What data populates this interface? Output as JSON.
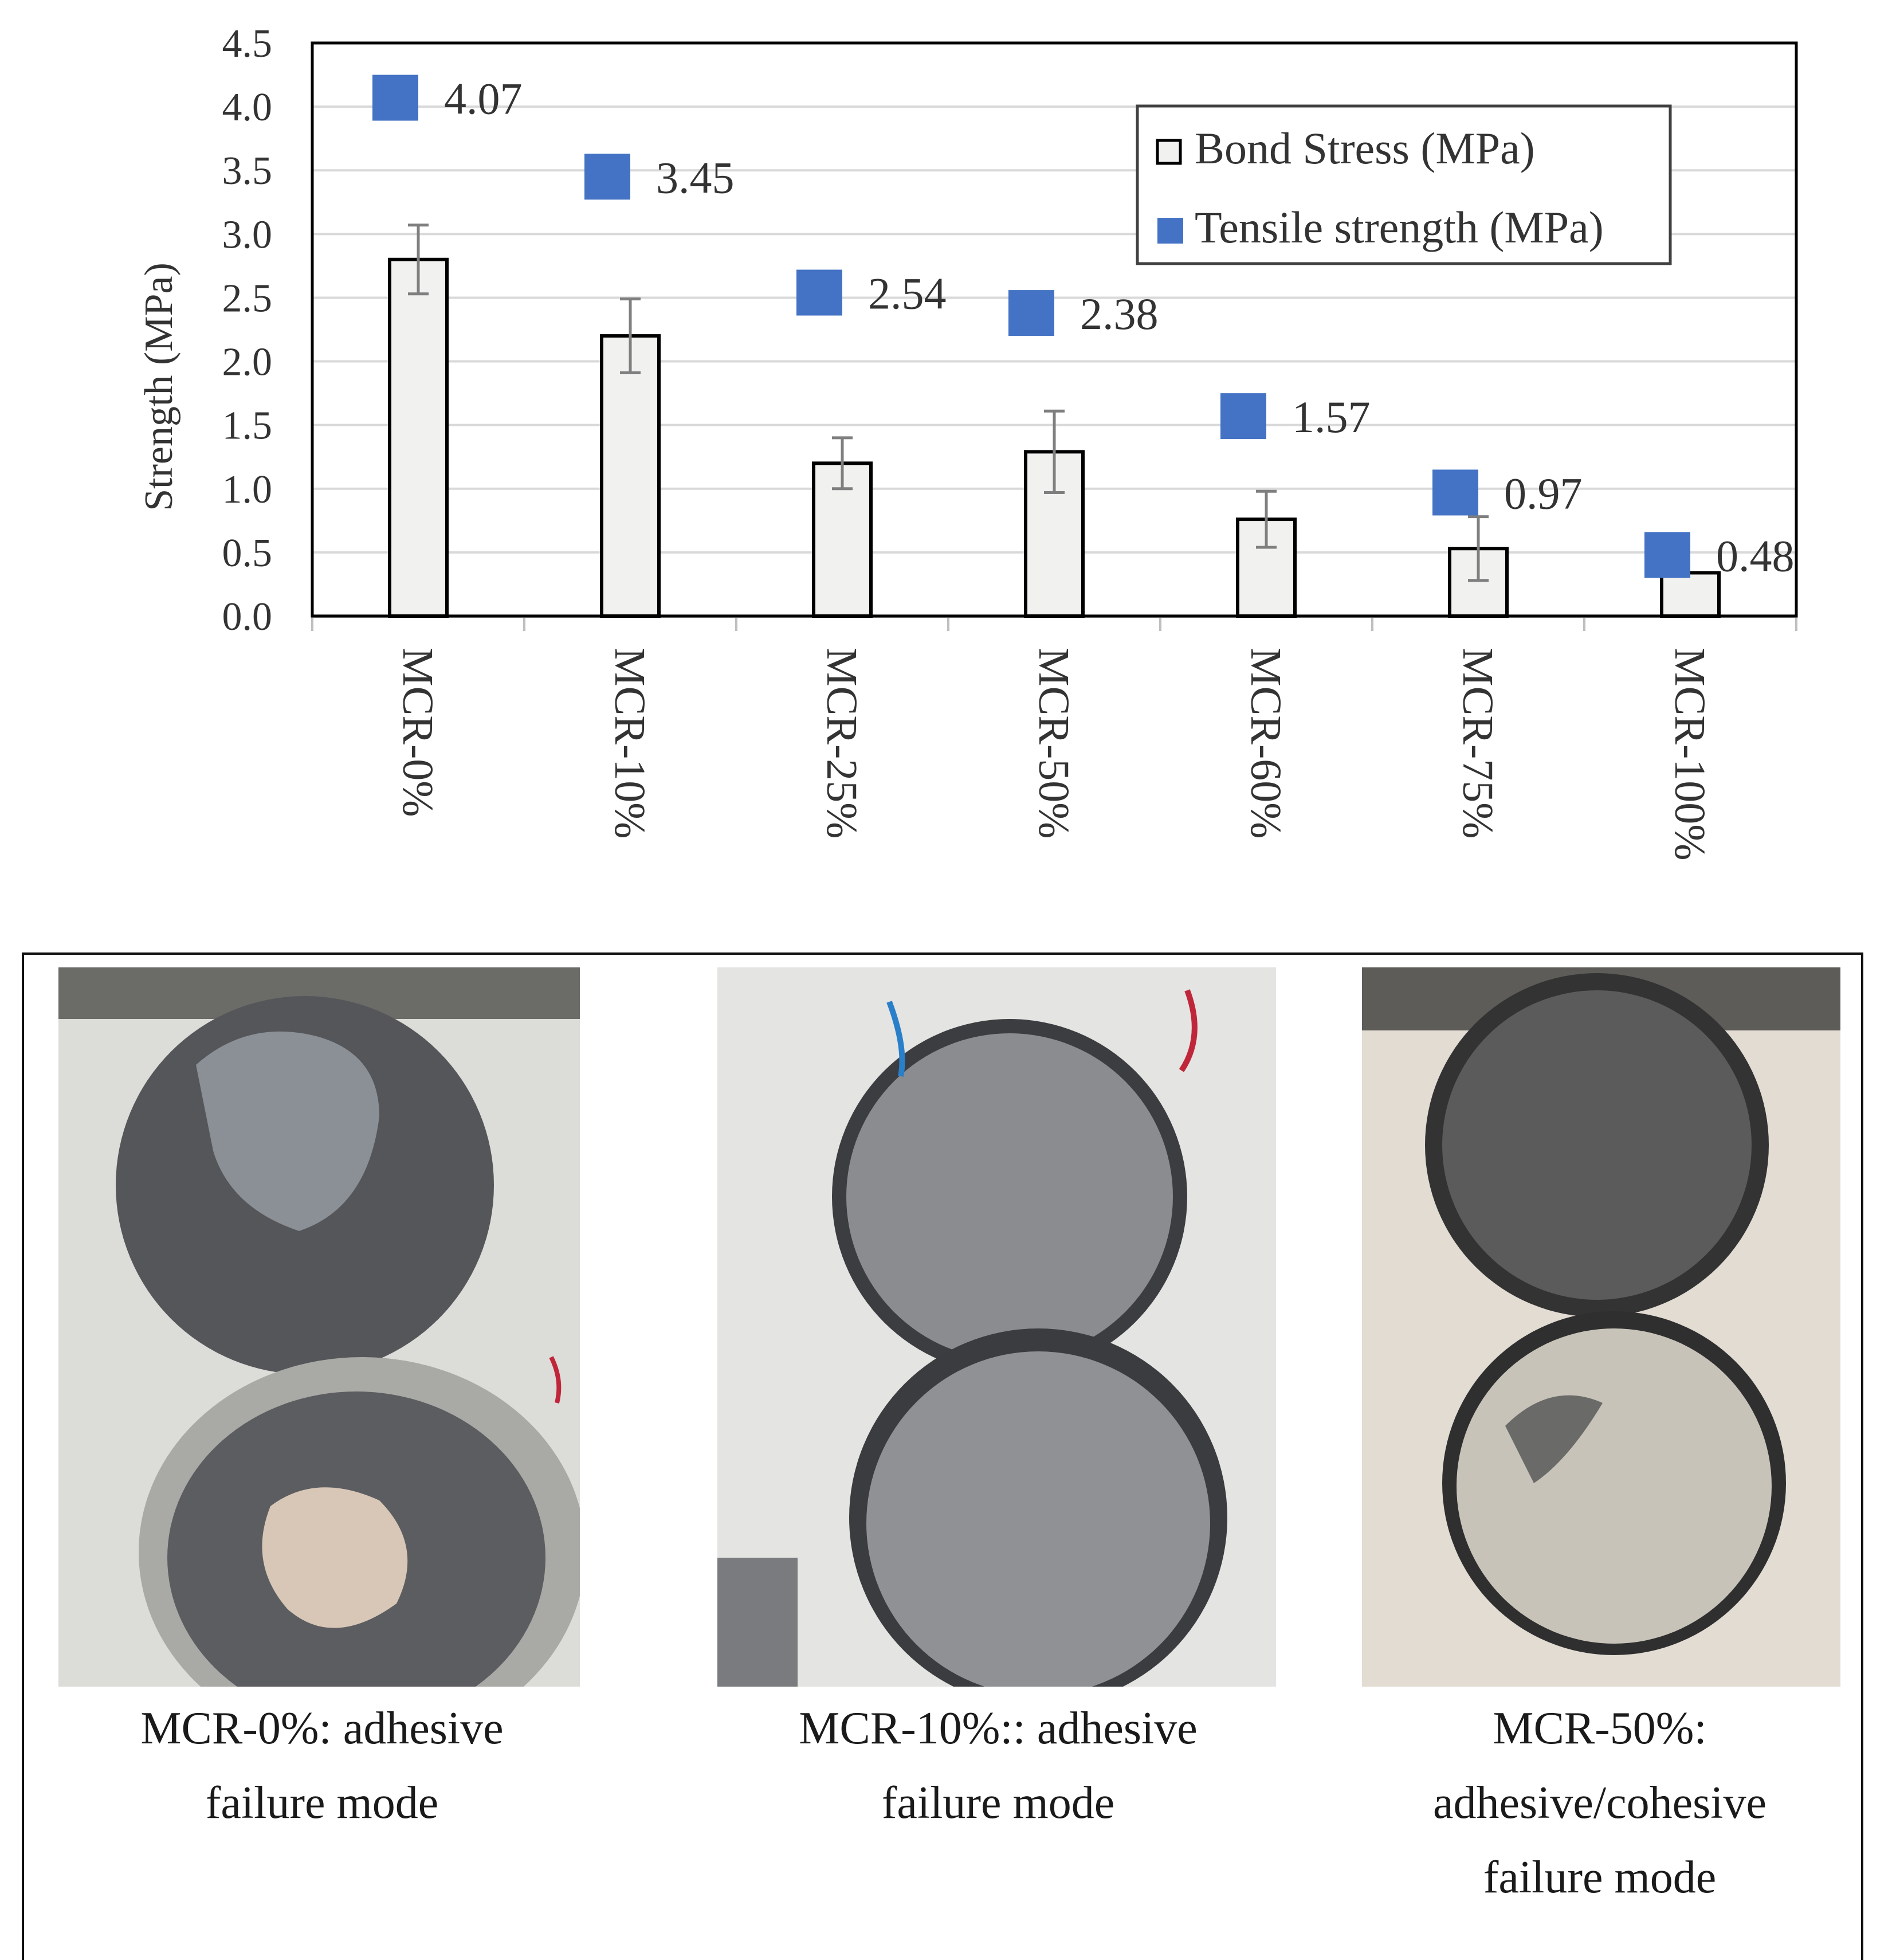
{
  "chart_data": {
    "type": "bar",
    "categories": [
      "MCR-0%",
      "MCR-10%",
      "MCR-25%",
      "MCR-50%",
      "MCR-60%",
      "MCR-75%",
      "MCR-100%"
    ],
    "series": [
      {
        "name": "Bond Stress (MPa)",
        "kind": "bar",
        "values": [
          2.8,
          2.2,
          1.2,
          1.29,
          0.76,
          0.53,
          0.34
        ],
        "error": [
          0.27,
          0.29,
          0.2,
          0.32,
          0.22,
          0.25,
          0.0
        ]
      },
      {
        "name": "Tensile strength (MPa)",
        "kind": "marker",
        "values": [
          4.07,
          3.45,
          2.54,
          2.38,
          1.57,
          0.97,
          0.48
        ],
        "labels": [
          "4.07",
          "3.45",
          "2.54",
          "2.38",
          "1.57",
          "0.97",
          "0.48"
        ]
      }
    ],
    "title": "",
    "xlabel": "",
    "ylabel": "Strength (MPa)",
    "ylim": [
      0,
      4.5
    ],
    "yticks": [
      "0.0",
      "0.5",
      "1.0",
      "1.5",
      "2.0",
      "2.5",
      "3.0",
      "3.5",
      "4.0",
      "4.5"
    ],
    "grid": true,
    "legend_position": "top-right",
    "colors": {
      "bar_fill": "#f1f1ef",
      "bar_stroke": "#000000",
      "marker": "#4472c4",
      "grid": "#d9d9d9",
      "error": "#7f7f7f"
    }
  },
  "photos": [
    {
      "caption": [
        "MCR-0%: adhesive",
        "failure mode"
      ]
    },
    {
      "caption": [
        "MCR-10%:: adhesive",
        "failure mode"
      ]
    },
    {
      "caption": [
        "MCR-50%:",
        "adhesive/cohesive",
        "failure mode"
      ]
    }
  ]
}
